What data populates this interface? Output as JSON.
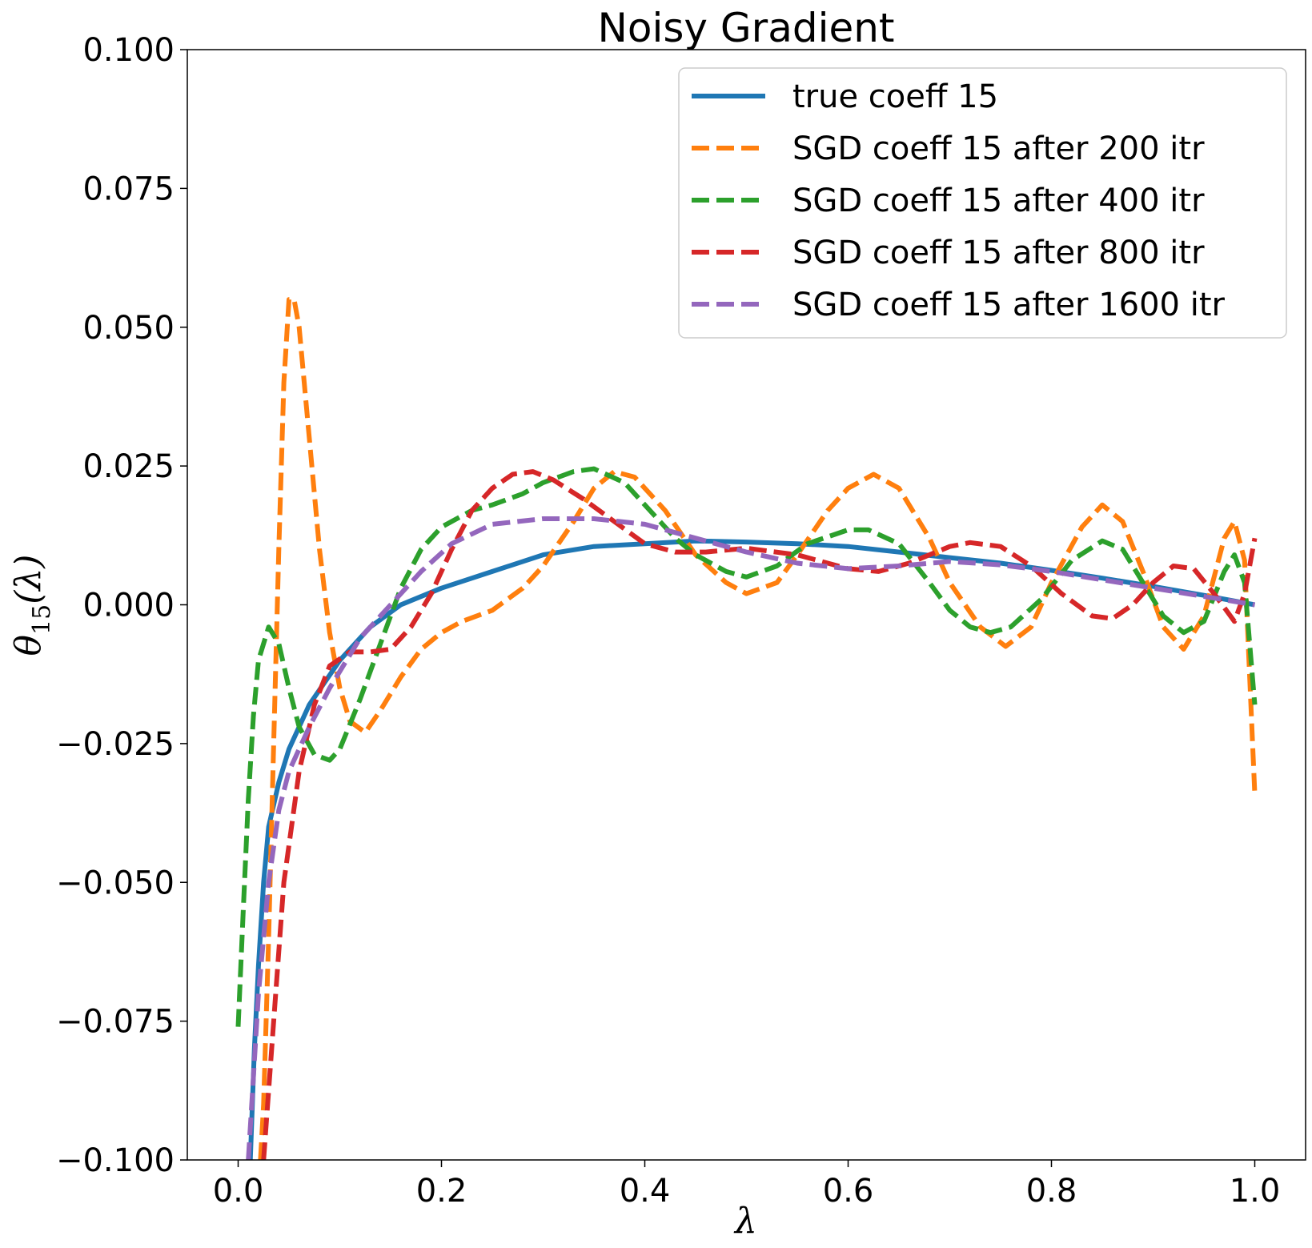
{
  "chart_data": {
    "type": "line",
    "title": "Noisy Gradient",
    "xlabel": "λ",
    "ylabel_main": "θ",
    "ylabel_sub": "15",
    "ylabel_tail": "(λ)",
    "xlim": [
      -0.05,
      1.05
    ],
    "ylim": [
      -0.1,
      0.1
    ],
    "xticks": [
      0.0,
      0.2,
      0.4,
      0.6,
      0.8,
      1.0
    ],
    "xtick_labels": [
      "0.0",
      "0.2",
      "0.4",
      "0.6",
      "0.8",
      "1.0"
    ],
    "yticks": [
      -0.1,
      -0.075,
      -0.05,
      -0.025,
      0.0,
      0.025,
      0.05,
      0.075,
      0.1
    ],
    "ytick_labels": [
      "−0.100",
      "−0.075",
      "−0.050",
      "−0.025",
      "0.000",
      "0.025",
      "0.050",
      "0.075",
      "0.100"
    ],
    "legend_position": "upper right",
    "grid": false,
    "series": [
      {
        "name": "true coeff 15",
        "color": "#1f77b4",
        "dash": "solid",
        "points": [
          [
            0.012,
            -0.1
          ],
          [
            0.016,
            -0.08
          ],
          [
            0.02,
            -0.065
          ],
          [
            0.025,
            -0.05
          ],
          [
            0.03,
            -0.04
          ],
          [
            0.04,
            -0.032
          ],
          [
            0.05,
            -0.026
          ],
          [
            0.07,
            -0.018
          ],
          [
            0.1,
            -0.01
          ],
          [
            0.13,
            -0.004
          ],
          [
            0.16,
            0.0
          ],
          [
            0.2,
            0.003
          ],
          [
            0.25,
            0.006
          ],
          [
            0.3,
            0.009
          ],
          [
            0.35,
            0.0105
          ],
          [
            0.4,
            0.011
          ],
          [
            0.45,
            0.0115
          ],
          [
            0.5,
            0.0113
          ],
          [
            0.55,
            0.011
          ],
          [
            0.6,
            0.0105
          ],
          [
            0.65,
            0.0095
          ],
          [
            0.7,
            0.0085
          ],
          [
            0.75,
            0.0075
          ],
          [
            0.8,
            0.0062
          ],
          [
            0.85,
            0.0048
          ],
          [
            0.9,
            0.0033
          ],
          [
            0.95,
            0.0017
          ],
          [
            1.0,
            0.0
          ]
        ]
      },
      {
        "name": "SGD coeff 15 after 200 itr",
        "color": "#ff7f0e",
        "dash": "dashed",
        "points": [
          [
            0.022,
            -0.1
          ],
          [
            0.025,
            -0.09
          ],
          [
            0.03,
            -0.06
          ],
          [
            0.035,
            -0.025
          ],
          [
            0.04,
            0.01
          ],
          [
            0.045,
            0.04
          ],
          [
            0.05,
            0.055
          ],
          [
            0.055,
            0.055
          ],
          [
            0.06,
            0.05
          ],
          [
            0.07,
            0.03
          ],
          [
            0.08,
            0.01
          ],
          [
            0.09,
            -0.005
          ],
          [
            0.1,
            -0.015
          ],
          [
            0.11,
            -0.021
          ],
          [
            0.125,
            -0.023
          ],
          [
            0.14,
            -0.019
          ],
          [
            0.16,
            -0.013
          ],
          [
            0.18,
            -0.008
          ],
          [
            0.2,
            -0.005
          ],
          [
            0.22,
            -0.003
          ],
          [
            0.25,
            -0.001
          ],
          [
            0.28,
            0.003
          ],
          [
            0.3,
            0.007
          ],
          [
            0.33,
            0.015
          ],
          [
            0.35,
            0.021
          ],
          [
            0.37,
            0.024
          ],
          [
            0.39,
            0.023
          ],
          [
            0.42,
            0.017
          ],
          [
            0.45,
            0.009
          ],
          [
            0.48,
            0.004
          ],
          [
            0.5,
            0.002
          ],
          [
            0.53,
            0.004
          ],
          [
            0.55,
            0.009
          ],
          [
            0.58,
            0.017
          ],
          [
            0.6,
            0.021
          ],
          [
            0.625,
            0.0235
          ],
          [
            0.65,
            0.021
          ],
          [
            0.68,
            0.012
          ],
          [
            0.7,
            0.004
          ],
          [
            0.73,
            -0.004
          ],
          [
            0.755,
            -0.0075
          ],
          [
            0.78,
            -0.004
          ],
          [
            0.8,
            0.004
          ],
          [
            0.83,
            0.014
          ],
          [
            0.85,
            0.018
          ],
          [
            0.87,
            0.015
          ],
          [
            0.89,
            0.006
          ],
          [
            0.91,
            -0.004
          ],
          [
            0.93,
            -0.008
          ],
          [
            0.95,
            -0.002
          ],
          [
            0.97,
            0.012
          ],
          [
            0.98,
            0.015
          ],
          [
            0.99,
            0.008
          ],
          [
            1.0,
            -0.034
          ]
        ]
      },
      {
        "name": "SGD coeff 15 after 400 itr",
        "color": "#2ca02c",
        "dash": "dashed",
        "points": [
          [
            0.0,
            -0.076
          ],
          [
            0.005,
            -0.055
          ],
          [
            0.01,
            -0.035
          ],
          [
            0.015,
            -0.02
          ],
          [
            0.02,
            -0.01
          ],
          [
            0.03,
            -0.004
          ],
          [
            0.04,
            -0.007
          ],
          [
            0.05,
            -0.015
          ],
          [
            0.06,
            -0.022
          ],
          [
            0.075,
            -0.027
          ],
          [
            0.09,
            -0.028
          ],
          [
            0.1,
            -0.026
          ],
          [
            0.12,
            -0.017
          ],
          [
            0.14,
            -0.007
          ],
          [
            0.16,
            0.003
          ],
          [
            0.18,
            0.01
          ],
          [
            0.2,
            0.014
          ],
          [
            0.23,
            0.017
          ],
          [
            0.25,
            0.018
          ],
          [
            0.28,
            0.02
          ],
          [
            0.3,
            0.022
          ],
          [
            0.33,
            0.024
          ],
          [
            0.35,
            0.0245
          ],
          [
            0.38,
            0.022
          ],
          [
            0.4,
            0.018
          ],
          [
            0.43,
            0.012
          ],
          [
            0.45,
            0.009
          ],
          [
            0.48,
            0.006
          ],
          [
            0.5,
            0.005
          ],
          [
            0.53,
            0.007
          ],
          [
            0.56,
            0.011
          ],
          [
            0.6,
            0.0135
          ],
          [
            0.62,
            0.0135
          ],
          [
            0.65,
            0.011
          ],
          [
            0.68,
            0.004
          ],
          [
            0.7,
            -0.001
          ],
          [
            0.72,
            -0.004
          ],
          [
            0.74,
            -0.005
          ],
          [
            0.76,
            -0.004
          ],
          [
            0.79,
            0.001
          ],
          [
            0.82,
            0.008
          ],
          [
            0.85,
            0.0115
          ],
          [
            0.87,
            0.01
          ],
          [
            0.89,
            0.004
          ],
          [
            0.91,
            -0.002
          ],
          [
            0.93,
            -0.005
          ],
          [
            0.95,
            -0.003
          ],
          [
            0.97,
            0.006
          ],
          [
            0.98,
            0.009
          ],
          [
            0.99,
            0.004
          ],
          [
            1.0,
            -0.018
          ]
        ]
      },
      {
        "name": "SGD coeff 15 after 800 itr",
        "color": "#d62728",
        "dash": "dashed",
        "points": [
          [
            0.025,
            -0.1
          ],
          [
            0.035,
            -0.075
          ],
          [
            0.045,
            -0.05
          ],
          [
            0.06,
            -0.03
          ],
          [
            0.075,
            -0.018
          ],
          [
            0.09,
            -0.011
          ],
          [
            0.11,
            -0.0085
          ],
          [
            0.13,
            -0.0085
          ],
          [
            0.15,
            -0.008
          ],
          [
            0.17,
            -0.004
          ],
          [
            0.19,
            0.002
          ],
          [
            0.21,
            0.01
          ],
          [
            0.23,
            0.017
          ],
          [
            0.25,
            0.021
          ],
          [
            0.27,
            0.0235
          ],
          [
            0.29,
            0.024
          ],
          [
            0.31,
            0.0225
          ],
          [
            0.34,
            0.019
          ],
          [
            0.37,
            0.015
          ],
          [
            0.4,
            0.011
          ],
          [
            0.43,
            0.0095
          ],
          [
            0.46,
            0.0095
          ],
          [
            0.5,
            0.0102
          ],
          [
            0.55,
            0.009
          ],
          [
            0.6,
            0.0065
          ],
          [
            0.63,
            0.006
          ],
          [
            0.66,
            0.0075
          ],
          [
            0.7,
            0.0105
          ],
          [
            0.72,
            0.0112
          ],
          [
            0.75,
            0.0105
          ],
          [
            0.78,
            0.007
          ],
          [
            0.81,
            0.002
          ],
          [
            0.84,
            -0.002
          ],
          [
            0.86,
            -0.0025
          ],
          [
            0.88,
            0.0
          ],
          [
            0.9,
            0.004
          ],
          [
            0.92,
            0.007
          ],
          [
            0.94,
            0.0065
          ],
          [
            0.96,
            0.002
          ],
          [
            0.98,
            -0.003
          ],
          [
            0.99,
            0.002
          ],
          [
            1.0,
            0.012
          ]
        ]
      },
      {
        "name": "SGD coeff 15 after 1600 itr",
        "color": "#9467bd",
        "dash": "dashed",
        "points": [
          [
            0.01,
            -0.1
          ],
          [
            0.015,
            -0.085
          ],
          [
            0.02,
            -0.07
          ],
          [
            0.03,
            -0.05
          ],
          [
            0.04,
            -0.037
          ],
          [
            0.05,
            -0.03
          ],
          [
            0.06,
            -0.026
          ],
          [
            0.07,
            -0.022
          ],
          [
            0.09,
            -0.015
          ],
          [
            0.12,
            -0.006
          ],
          [
            0.15,
            0.0
          ],
          [
            0.18,
            0.006
          ],
          [
            0.21,
            0.011
          ],
          [
            0.25,
            0.0145
          ],
          [
            0.3,
            0.0155
          ],
          [
            0.35,
            0.0155
          ],
          [
            0.4,
            0.0145
          ],
          [
            0.45,
            0.012
          ],
          [
            0.5,
            0.0095
          ],
          [
            0.55,
            0.0075
          ],
          [
            0.6,
            0.0065
          ],
          [
            0.65,
            0.007
          ],
          [
            0.7,
            0.0078
          ],
          [
            0.75,
            0.0072
          ],
          [
            0.8,
            0.006
          ],
          [
            0.85,
            0.0045
          ],
          [
            0.9,
            0.003
          ],
          [
            0.95,
            0.0015
          ],
          [
            1.0,
            0.0
          ]
        ]
      }
    ]
  }
}
